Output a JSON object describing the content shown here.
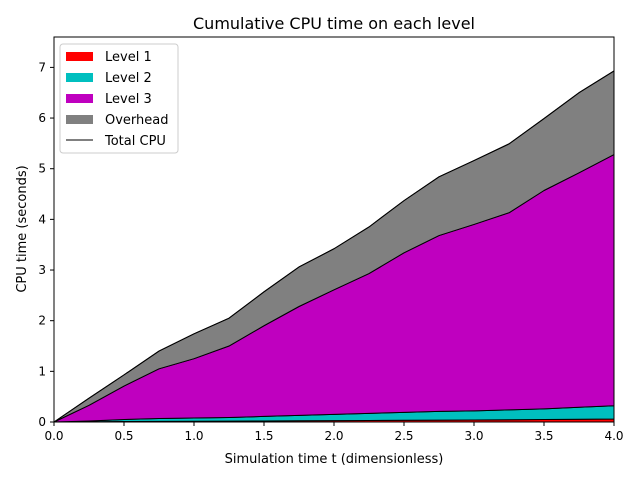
{
  "chart_data": {
    "type": "area",
    "title": "Cumulative CPU time on each level",
    "xlabel": "Simulation time t (dimensionless)",
    "ylabel": "CPU time (seconds)",
    "xlim": [
      0,
      4.0
    ],
    "ylim": [
      0,
      7.6
    ],
    "xticks": [
      "0.0",
      "0.5",
      "1.0",
      "1.5",
      "2.0",
      "2.5",
      "3.0",
      "3.5",
      "4.0"
    ],
    "yticks": [
      "0",
      "1",
      "2",
      "3",
      "4",
      "5",
      "6",
      "7"
    ],
    "legend_position": "top-left",
    "grid": false,
    "x": [
      0,
      0.25,
      0.5,
      0.75,
      1.0,
      1.25,
      1.5,
      1.75,
      2.0,
      2.25,
      2.5,
      2.75,
      3.0,
      3.25,
      3.5,
      3.75,
      4.0
    ],
    "series": [
      {
        "name": "Level 1",
        "color": "#ff0000",
        "values": [
          0,
          0.005,
          0.01,
          0.013,
          0.015,
          0.018,
          0.02,
          0.025,
          0.028,
          0.03,
          0.035,
          0.038,
          0.04,
          0.045,
          0.05,
          0.055,
          0.06
        ]
      },
      {
        "name": "Level 2",
        "color": "#00bfbf",
        "values": [
          0,
          0.015,
          0.04,
          0.057,
          0.065,
          0.072,
          0.09,
          0.105,
          0.122,
          0.14,
          0.155,
          0.172,
          0.18,
          0.195,
          0.21,
          0.235,
          0.26
        ]
      },
      {
        "name": "Level 3",
        "color": "#bf00bf",
        "values": [
          0,
          0.31,
          0.66,
          0.98,
          1.17,
          1.41,
          1.79,
          2.15,
          2.46,
          2.76,
          3.15,
          3.47,
          3.68,
          3.89,
          4.31,
          4.63,
          4.96
        ]
      },
      {
        "name": "Overhead",
        "color": "#808080",
        "values": [
          0,
          0.14,
          0.22,
          0.35,
          0.49,
          0.55,
          0.67,
          0.78,
          0.81,
          0.92,
          1.03,
          1.16,
          1.26,
          1.36,
          1.42,
          1.58,
          1.65
        ]
      }
    ],
    "total": {
      "name": "Total CPU",
      "color": "#000000",
      "values": [
        0,
        0.47,
        0.93,
        1.4,
        1.74,
        2.05,
        2.57,
        3.06,
        3.42,
        3.85,
        4.37,
        4.84,
        5.16,
        5.49,
        5.99,
        6.5,
        6.93
      ]
    }
  }
}
